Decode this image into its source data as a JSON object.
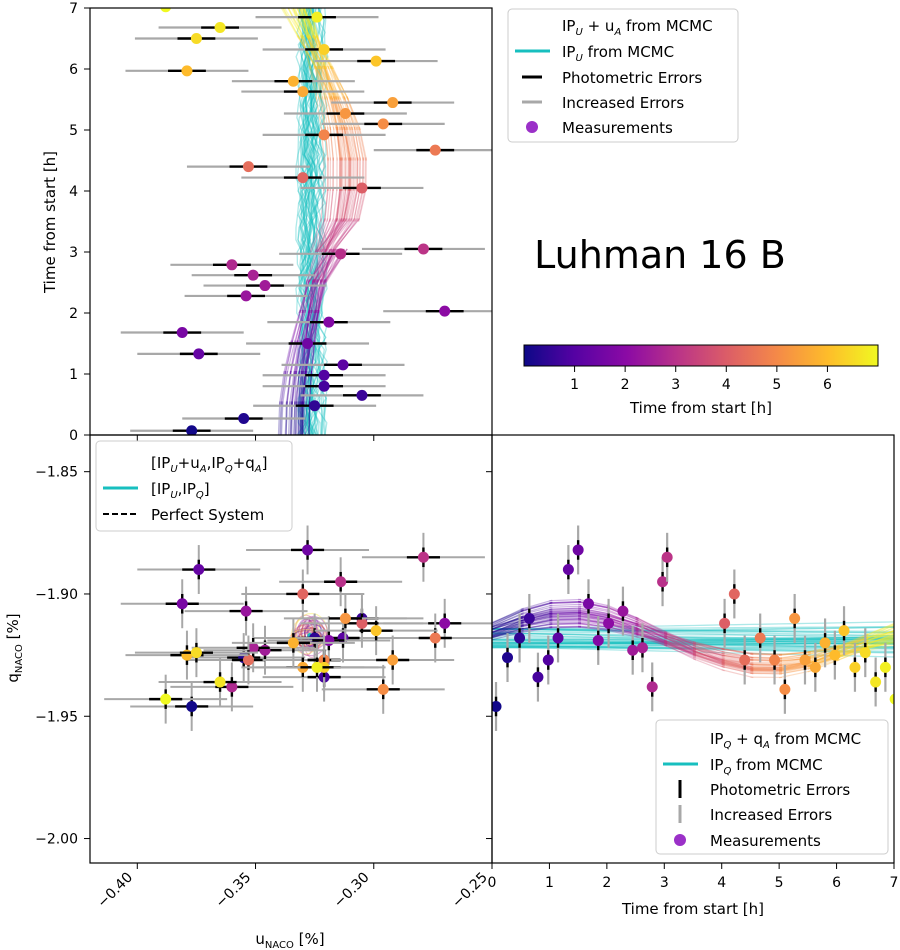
{
  "figure_title": "Luhman 16 B",
  "colors": {
    "cyan": "#17bfbf",
    "error_black": "#000000",
    "error_gray": "#a8a8a8",
    "marker_legend": "#9b30c8",
    "colormap": [
      "#0d0887",
      "#5402a3",
      "#8b0aa5",
      "#b93289",
      "#db5c68",
      "#f48849",
      "#febd2a",
      "#f0f921"
    ]
  },
  "chart_data": [
    {
      "id": "top_left",
      "type": "scatter",
      "xlabel": "",
      "ylabel": "Time from start [h]",
      "ylim": [
        0,
        7
      ],
      "yticks": [
        "0",
        "1",
        "2",
        "3",
        "4",
        "5",
        "6",
        "7"
      ],
      "xlim": [
        -0.42,
        -0.25
      ],
      "legend": {
        "position": "outside-right",
        "entries": [
          {
            "kind": "gradient-line",
            "label": "IP_U + u_A from MCMC"
          },
          {
            "kind": "cyan-line",
            "label": "IP_U from MCMC"
          },
          {
            "kind": "black-dash",
            "label": "Photometric Errors"
          },
          {
            "kind": "gray-dash",
            "label": "Increased Errors"
          },
          {
            "kind": "dot",
            "label": "Measurements"
          }
        ]
      },
      "points": [
        {
          "u": -0.377,
          "t": 0.07
        },
        {
          "u": -0.355,
          "t": 0.27
        },
        {
          "u": -0.325,
          "t": 0.48
        },
        {
          "u": -0.305,
          "t": 0.65
        },
        {
          "u": -0.321,
          "t": 0.8
        },
        {
          "u": -0.321,
          "t": 0.98
        },
        {
          "u": -0.313,
          "t": 1.15
        },
        {
          "u": -0.374,
          "t": 1.33
        },
        {
          "u": -0.328,
          "t": 1.5
        },
        {
          "u": -0.381,
          "t": 1.68
        },
        {
          "u": -0.319,
          "t": 1.85
        },
        {
          "u": -0.27,
          "t": 2.03
        },
        {
          "u": -0.354,
          "t": 2.28
        },
        {
          "u": -0.346,
          "t": 2.45
        },
        {
          "u": -0.351,
          "t": 2.62
        },
        {
          "u": -0.36,
          "t": 2.79
        },
        {
          "u": -0.314,
          "t": 2.97
        },
        {
          "u": -0.279,
          "t": 3.05
        },
        {
          "u": -0.305,
          "t": 4.05
        },
        {
          "u": -0.33,
          "t": 4.22
        },
        {
          "u": -0.353,
          "t": 4.4
        },
        {
          "u": -0.274,
          "t": 4.67
        },
        {
          "u": -0.321,
          "t": 4.92
        },
        {
          "u": -0.296,
          "t": 5.1
        },
        {
          "u": -0.312,
          "t": 5.27
        },
        {
          "u": -0.292,
          "t": 5.45
        },
        {
          "u": -0.33,
          "t": 5.63
        },
        {
          "u": -0.334,
          "t": 5.8
        },
        {
          "u": -0.379,
          "t": 5.97
        },
        {
          "u": -0.299,
          "t": 6.13
        },
        {
          "u": -0.321,
          "t": 6.32
        },
        {
          "u": -0.375,
          "t": 6.5
        },
        {
          "u": -0.365,
          "t": 6.68
        },
        {
          "u": -0.324,
          "t": 6.85
        },
        {
          "u": -0.388,
          "t": 7.02
        }
      ]
    },
    {
      "id": "bottom_left",
      "type": "scatter",
      "xlabel": "u_NACO [%]",
      "ylabel": "q_NACO [%]",
      "xlim": [
        -0.42,
        -0.25
      ],
      "ylim": [
        -2.01,
        -1.835
      ],
      "xticks": [
        {
          "v": -0.4,
          "label": "−0.40"
        },
        {
          "v": -0.35,
          "label": "−0.35"
        },
        {
          "v": -0.3,
          "label": "−0.30"
        },
        {
          "v": -0.25,
          "label": "−0.25"
        }
      ],
      "yticks": [
        {
          "v": -1.85,
          "label": "−1.85"
        },
        {
          "v": -1.9,
          "label": "−1.90"
        },
        {
          "v": -1.95,
          "label": "−1.95"
        },
        {
          "v": -2.0,
          "label": "−2.00"
        }
      ],
      "legend": {
        "position": "upper-left",
        "entries": [
          {
            "kind": "gradient-line",
            "label": "[IP_U+u_A,IP_Q+q_A]"
          },
          {
            "kind": "cyan-line",
            "label": "[IP_U,IP_Q]"
          },
          {
            "kind": "black-dashed",
            "label": "Perfect System"
          }
        ]
      },
      "points": [
        {
          "u": -0.377,
          "q": -1.946,
          "t": 0.07
        },
        {
          "u": -0.355,
          "q": -1.926,
          "t": 0.27
        },
        {
          "u": -0.325,
          "q": -1.918,
          "t": 0.48
        },
        {
          "u": -0.305,
          "q": -1.91,
          "t": 0.65
        },
        {
          "u": -0.321,
          "q": -1.934,
          "t": 0.8
        },
        {
          "u": -0.321,
          "q": -1.927,
          "t": 0.98
        },
        {
          "u": -0.313,
          "q": -1.918,
          "t": 1.15
        },
        {
          "u": -0.374,
          "q": -1.89,
          "t": 1.33
        },
        {
          "u": -0.328,
          "q": -1.882,
          "t": 1.5
        },
        {
          "u": -0.381,
          "q": -1.904,
          "t": 1.68
        },
        {
          "u": -0.319,
          "q": -1.919,
          "t": 1.85
        },
        {
          "u": -0.27,
          "q": -1.912,
          "t": 2.03
        },
        {
          "u": -0.354,
          "q": -1.907,
          "t": 2.28
        },
        {
          "u": -0.346,
          "q": -1.923,
          "t": 2.45
        },
        {
          "u": -0.351,
          "q": -1.922,
          "t": 2.62
        },
        {
          "u": -0.36,
          "q": -1.938,
          "t": 2.79
        },
        {
          "u": -0.314,
          "q": -1.895,
          "t": 2.97
        },
        {
          "u": -0.279,
          "q": -1.885,
          "t": 3.05
        },
        {
          "u": -0.305,
          "q": -1.912,
          "t": 4.05
        },
        {
          "u": -0.33,
          "q": -1.9,
          "t": 4.22
        },
        {
          "u": -0.353,
          "q": -1.927,
          "t": 4.4
        },
        {
          "u": -0.274,
          "q": -1.918,
          "t": 4.67
        },
        {
          "u": -0.321,
          "q": -1.927,
          "t": 4.92
        },
        {
          "u": -0.296,
          "q": -1.939,
          "t": 5.1
        },
        {
          "u": -0.312,
          "q": -1.91,
          "t": 5.27
        },
        {
          "u": -0.292,
          "q": -1.927,
          "t": 5.45
        },
        {
          "u": -0.33,
          "q": -1.93,
          "t": 5.63
        },
        {
          "u": -0.334,
          "q": -1.92,
          "t": 5.8
        },
        {
          "u": -0.379,
          "q": -1.925,
          "t": 5.97
        },
        {
          "u": -0.299,
          "q": -1.915,
          "t": 6.13
        },
        {
          "u": -0.321,
          "q": -1.93,
          "t": 6.32
        },
        {
          "u": -0.375,
          "q": -1.924,
          "t": 6.5
        },
        {
          "u": -0.365,
          "q": -1.936,
          "t": 6.68
        },
        {
          "u": -0.324,
          "q": -1.93,
          "t": 6.85
        },
        {
          "u": -0.388,
          "q": -1.943,
          "t": 7.02
        }
      ]
    },
    {
      "id": "bottom_right",
      "type": "scatter",
      "xlabel": "Time from start [h]",
      "ylabel": "",
      "xlim": [
        0,
        7
      ],
      "ylim": [
        -2.01,
        -1.835
      ],
      "xticks": [
        "0",
        "1",
        "2",
        "3",
        "4",
        "5",
        "6",
        "7"
      ],
      "legend": {
        "position": "lower-right",
        "entries": [
          {
            "kind": "gradient-line",
            "label": "IP_Q + q_A from MCMC"
          },
          {
            "kind": "cyan-line",
            "label": "IP_Q from MCMC"
          },
          {
            "kind": "black-vbar",
            "label": "Photometric Errors"
          },
          {
            "kind": "gray-vbar",
            "label": "Increased Errors"
          },
          {
            "kind": "dot",
            "label": "Measurements"
          }
        ]
      }
    },
    {
      "id": "colorbar",
      "type": "colorbar",
      "label": "Time from start [h]",
      "range": [
        0,
        7
      ],
      "ticks": [
        "1",
        "2",
        "3",
        "4",
        "5",
        "6"
      ]
    }
  ]
}
